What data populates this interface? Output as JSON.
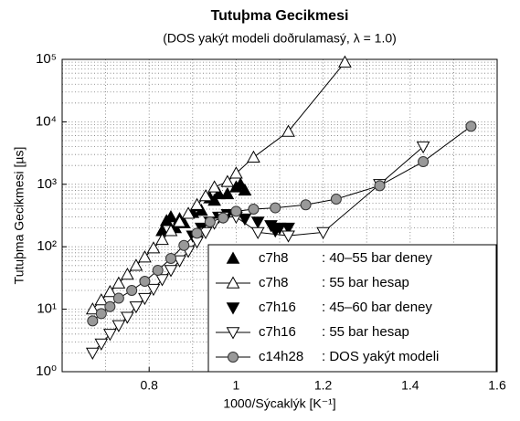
{
  "chart_data": {
    "type": "line",
    "title": "Tutuþma Gecikmesi",
    "subtitle": "(DOS yakýt modeli doðrulamasý,  λ = 1.0)",
    "xlabel": "1000/Sýcaklýk [K⁻¹]",
    "ylabel": "Tutuþma Gecikmesi [µs]",
    "xlim": [
      0.6,
      1.6
    ],
    "xticks": [
      0.8,
      1,
      1.2,
      1.4,
      1.6
    ],
    "ylim": [
      1,
      100000
    ],
    "yticks": [
      {
        "value": 1,
        "label": "10⁰"
      },
      {
        "value": 10,
        "label": "10¹"
      },
      {
        "value": 100,
        "label": "10²"
      },
      {
        "value": 1000,
        "label": "10³"
      },
      {
        "value": 10000,
        "label": "10⁴"
      },
      {
        "value": 100000,
        "label": "10⁵"
      }
    ],
    "log_y": true,
    "grid": true,
    "legend": "lower right",
    "series": [
      {
        "name": "c7h8",
        "description": ": 40–55 bar deney",
        "color": "#000000",
        "marker": "triangle-up",
        "filled": true,
        "line": false,
        "x": [
          0.83,
          0.84,
          0.85,
          0.86,
          0.87,
          0.88,
          0.9,
          0.91,
          0.92,
          0.94,
          0.95,
          0.96,
          0.98,
          1.0,
          1.01,
          1.02
        ],
        "values": [
          180,
          260,
          300,
          200,
          280,
          240,
          350,
          450,
          380,
          600,
          550,
          700,
          700,
          900,
          1000,
          800
        ]
      },
      {
        "name": "c7h8",
        "description": ": 55 bar hesap",
        "color": "#000000",
        "marker": "triangle-up",
        "filled": false,
        "line": true,
        "x": [
          0.67,
          0.69,
          0.71,
          0.73,
          0.75,
          0.77,
          0.79,
          0.81,
          0.83,
          0.85,
          0.87,
          0.89,
          0.91,
          0.93,
          0.95,
          0.98,
          1.0,
          1.04,
          1.12,
          1.25
        ],
        "values": [
          10,
          14,
          19,
          26,
          36,
          50,
          68,
          95,
          130,
          180,
          250,
          340,
          470,
          650,
          900,
          1100,
          1500,
          2700,
          7000,
          90000
        ]
      },
      {
        "name": "c7h16",
        "description": ": 45–60 bar deney",
        "color": "#000000",
        "marker": "triangle-down",
        "filled": true,
        "line": false,
        "x": [
          0.9,
          0.92,
          0.94,
          0.96,
          0.98,
          1.0,
          1.02,
          1.05,
          1.08,
          1.1,
          1.12,
          1.09
        ],
        "values": [
          150,
          200,
          250,
          300,
          330,
          320,
          280,
          250,
          220,
          200,
          200,
          180
        ]
      },
      {
        "name": "c7h16",
        "description": ": 55 bar hesap",
        "color": "#000000",
        "marker": "triangle-down",
        "filled": false,
        "line": true,
        "x": [
          0.67,
          0.69,
          0.71,
          0.73,
          0.75,
          0.77,
          0.79,
          0.81,
          0.83,
          0.85,
          0.87,
          0.89,
          0.91,
          0.93,
          0.95,
          0.97,
          1.0,
          1.05,
          1.12,
          1.2,
          1.33,
          1.43
        ],
        "values": [
          2,
          2.8,
          4,
          5.5,
          7.5,
          11,
          15,
          21,
          30,
          42,
          60,
          85,
          120,
          170,
          240,
          300,
          300,
          170,
          150,
          170,
          1000,
          4000
        ]
      },
      {
        "name": "c14h28",
        "description": ": DOS yakýt modeli",
        "color": "#999999",
        "marker": "circle",
        "filled": true,
        "line": true,
        "x": [
          0.67,
          0.69,
          0.71,
          0.73,
          0.76,
          0.79,
          0.82,
          0.85,
          0.88,
          0.91,
          0.94,
          0.97,
          1.0,
          1.04,
          1.09,
          1.16,
          1.23,
          1.33,
          1.43,
          1.54
        ],
        "values": [
          6.5,
          8.5,
          11,
          15,
          20,
          28,
          42,
          65,
          105,
          165,
          250,
          290,
          370,
          400,
          420,
          470,
          580,
          950,
          2300,
          8500
        ]
      }
    ]
  }
}
